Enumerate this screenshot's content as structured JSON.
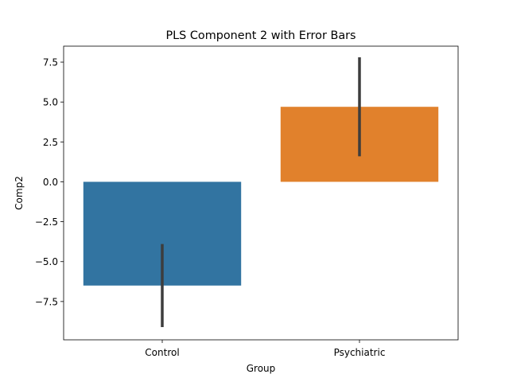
{
  "chart_data": {
    "type": "bar",
    "title": "PLS Component 2 with Error Bars",
    "xlabel": "Group",
    "ylabel": "Comp2",
    "categories": [
      "Control",
      "Psychiatric"
    ],
    "values": [
      -6.5,
      4.7
    ],
    "error_low": [
      -9.1,
      1.6
    ],
    "error_high": [
      -3.9,
      7.8
    ],
    "colors": [
      "#3274a1",
      "#e1812c"
    ],
    "ylim": [
      -9.9,
      8.5
    ],
    "yticks": [
      -7.5,
      -5.0,
      -2.5,
      0.0,
      2.5,
      5.0,
      7.5
    ],
    "ytick_labels": [
      "−7.5",
      "−5.0",
      "−2.5",
      "0.0",
      "2.5",
      "5.0",
      "7.5"
    ],
    "grid": false,
    "legend": "none"
  }
}
